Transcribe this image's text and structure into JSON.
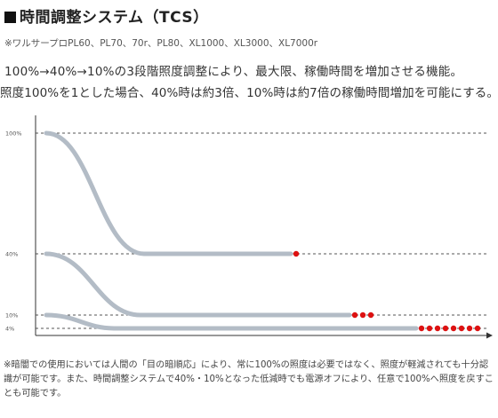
{
  "header": {
    "title": "時間調整システム（TCS）",
    "models": "※ワルサープロPL60、PL70、70r、PL80、XL1000、XL3000、XL7000r"
  },
  "description": {
    "line1": "100%→40%→10%の3段階照度調整により、最大限、稼働時間を増加させる機能。",
    "line2": "照度100%を1とした場合、40%時は約3倍、10%時は約7倍の稼働時間増加を可能にする。"
  },
  "chart_data": {
    "type": "line",
    "y_tick_labels": [
      "100%",
      "40%",
      "10%",
      "4%"
    ],
    "y_ticks": [
      100,
      40,
      10,
      4
    ],
    "series": [
      {
        "start_level": 100,
        "end_level": 40,
        "dot_count": 1
      },
      {
        "start_level": 40,
        "end_level": 10,
        "dot_count": 3
      },
      {
        "start_level": 10,
        "end_level": 4,
        "dot_count": 8
      }
    ],
    "colors": {
      "curve": "#b3bcc6",
      "dot": "#dd1111",
      "axis": "#333333",
      "grid": "#555555"
    }
  },
  "footnote": "※暗闇での使用においては人間の「目の暗順応」により、常に100%の照度は必要ではなく、照度が軽減されても十分認識が可能です。また、時間調整システムで40%・10%となった低減時でも電源オフにより、任意で100%へ照度を戻すことも可能です。"
}
